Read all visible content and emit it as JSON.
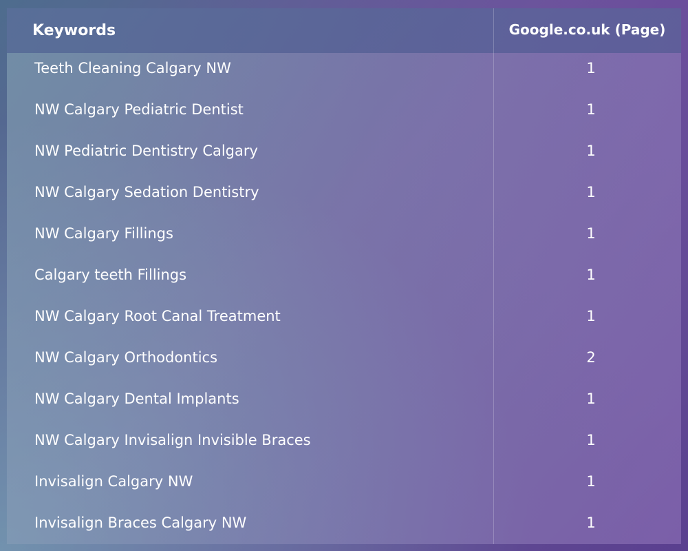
{
  "table": {
    "headers": {
      "keywords": "Keywords",
      "google": "Google.co.uk (Page)"
    },
    "rows": [
      {
        "keyword": "Teeth Cleaning Calgary NW",
        "page": "1"
      },
      {
        "keyword": "NW Calgary Pediatric Dentist",
        "page": "1"
      },
      {
        "keyword": "NW Pediatric Dentistry Calgary",
        "page": "1"
      },
      {
        "keyword": "NW Calgary Sedation Dentistry",
        "page": "1"
      },
      {
        "keyword": "NW Calgary Fillings",
        "page": "1"
      },
      {
        "keyword": "Calgary teeth Fillings",
        "page": "1"
      },
      {
        "keyword": "NW Calgary Root Canal Treatment",
        "page": "1"
      },
      {
        "keyword": "NW Calgary Orthodontics",
        "page": "2"
      },
      {
        "keyword": "NW Calgary Dental Implants",
        "page": "1"
      },
      {
        "keyword": "NW Calgary Invisalign Invisible Braces",
        "page": "1"
      },
      {
        "keyword": "Invisalign Calgary NW",
        "page": "1"
      },
      {
        "keyword": "Invisalign Braces Calgary NW",
        "page": "1"
      }
    ]
  }
}
